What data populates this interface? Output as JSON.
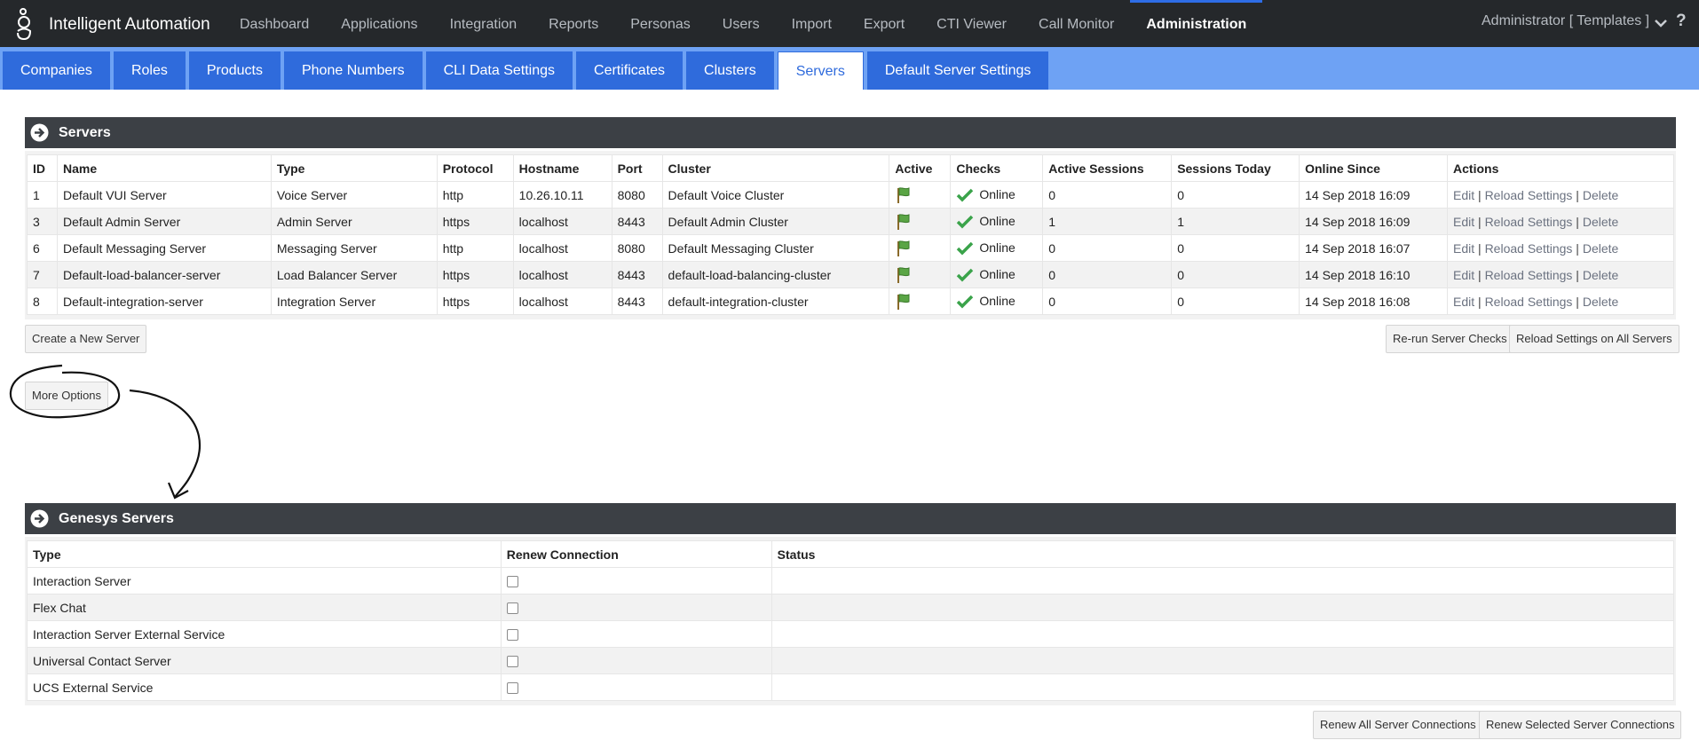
{
  "app": {
    "title": "Intelligent Automation"
  },
  "topnav": {
    "items": [
      {
        "label": "Dashboard"
      },
      {
        "label": "Applications"
      },
      {
        "label": "Integration"
      },
      {
        "label": "Reports"
      },
      {
        "label": "Personas"
      },
      {
        "label": "Users"
      },
      {
        "label": "Import"
      },
      {
        "label": "Export"
      },
      {
        "label": "CTI Viewer"
      },
      {
        "label": "Call Monitor"
      },
      {
        "label": "Administration"
      }
    ],
    "active": "Administration",
    "user": "Administrator [ Templates ]",
    "help": "?"
  },
  "subnav": {
    "tabs": [
      {
        "label": "Companies"
      },
      {
        "label": "Roles"
      },
      {
        "label": "Products"
      },
      {
        "label": "Phone Numbers"
      },
      {
        "label": "CLI Data Settings"
      },
      {
        "label": "Certificates"
      },
      {
        "label": "Clusters"
      },
      {
        "label": "Servers"
      },
      {
        "label": "Default Server Settings"
      }
    ],
    "active": "Servers"
  },
  "servers": {
    "title": "Servers",
    "columns": [
      "ID",
      "Name",
      "Type",
      "Protocol",
      "Hostname",
      "Port",
      "Cluster",
      "Active",
      "Checks",
      "Active Sessions",
      "Sessions Today",
      "Online Since",
      "Actions"
    ],
    "rows": [
      {
        "id": "1",
        "name": "Default VUI Server",
        "type": "Voice Server",
        "protocol": "http",
        "hostname": "10.26.10.11",
        "port": "8080",
        "cluster": "Default Voice Cluster",
        "checks": "Online",
        "active_sessions": "0",
        "sessions_today": "0",
        "online_since": "14 Sep 2018 16:09"
      },
      {
        "id": "3",
        "name": "Default Admin Server",
        "type": "Admin Server",
        "protocol": "https",
        "hostname": "localhost",
        "port": "8443",
        "cluster": "Default Admin Cluster",
        "checks": "Online",
        "active_sessions": "1",
        "sessions_today": "1",
        "online_since": "14 Sep 2018 16:09"
      },
      {
        "id": "6",
        "name": "Default Messaging Server",
        "type": "Messaging Server",
        "protocol": "http",
        "hostname": "localhost",
        "port": "8080",
        "cluster": "Default Messaging Cluster",
        "checks": "Online",
        "active_sessions": "0",
        "sessions_today": "0",
        "online_since": "14 Sep 2018 16:07"
      },
      {
        "id": "7",
        "name": "Default-load-balancer-server",
        "type": "Load Balancer Server",
        "protocol": "https",
        "hostname": "localhost",
        "port": "8443",
        "cluster": "default-load-balancing-cluster",
        "checks": "Online",
        "active_sessions": "0",
        "sessions_today": "0",
        "online_since": "14 Sep 2018 16:10"
      },
      {
        "id": "8",
        "name": "Default-integration-server",
        "type": "Integration Server",
        "protocol": "https",
        "hostname": "localhost",
        "port": "8443",
        "cluster": "default-integration-cluster",
        "checks": "Online",
        "active_sessions": "0",
        "sessions_today": "0",
        "online_since": "14 Sep 2018 16:08"
      }
    ],
    "actions": {
      "edit": "Edit",
      "reload": "Reload Settings",
      "delete": "Delete",
      "separator": "|"
    },
    "buttons": {
      "create": "Create a New Server",
      "rerun": "Re-run Server Checks",
      "reload_all": "Reload Settings on All Servers",
      "more_options": "More Options"
    }
  },
  "genesys": {
    "title": "Genesys Servers",
    "columns": [
      "Type",
      "Renew Connection",
      "Status"
    ],
    "rows": [
      {
        "type": "Interaction Server",
        "status": ""
      },
      {
        "type": "Flex Chat",
        "status": ""
      },
      {
        "type": "Interaction Server External Service",
        "status": ""
      },
      {
        "type": "Universal Contact Server",
        "status": ""
      },
      {
        "type": "UCS External Service",
        "status": ""
      }
    ],
    "buttons": {
      "renew_all": "Renew All Server Connections",
      "renew_selected": "Renew Selected Server Connections"
    }
  },
  "colors": {
    "topnav_bg": "#25282b",
    "subnav_bg": "#6ea2f4",
    "tab_bg": "#2f6bdc",
    "panel_header_bg": "#3c4045",
    "check_green": "#3aa34a"
  }
}
